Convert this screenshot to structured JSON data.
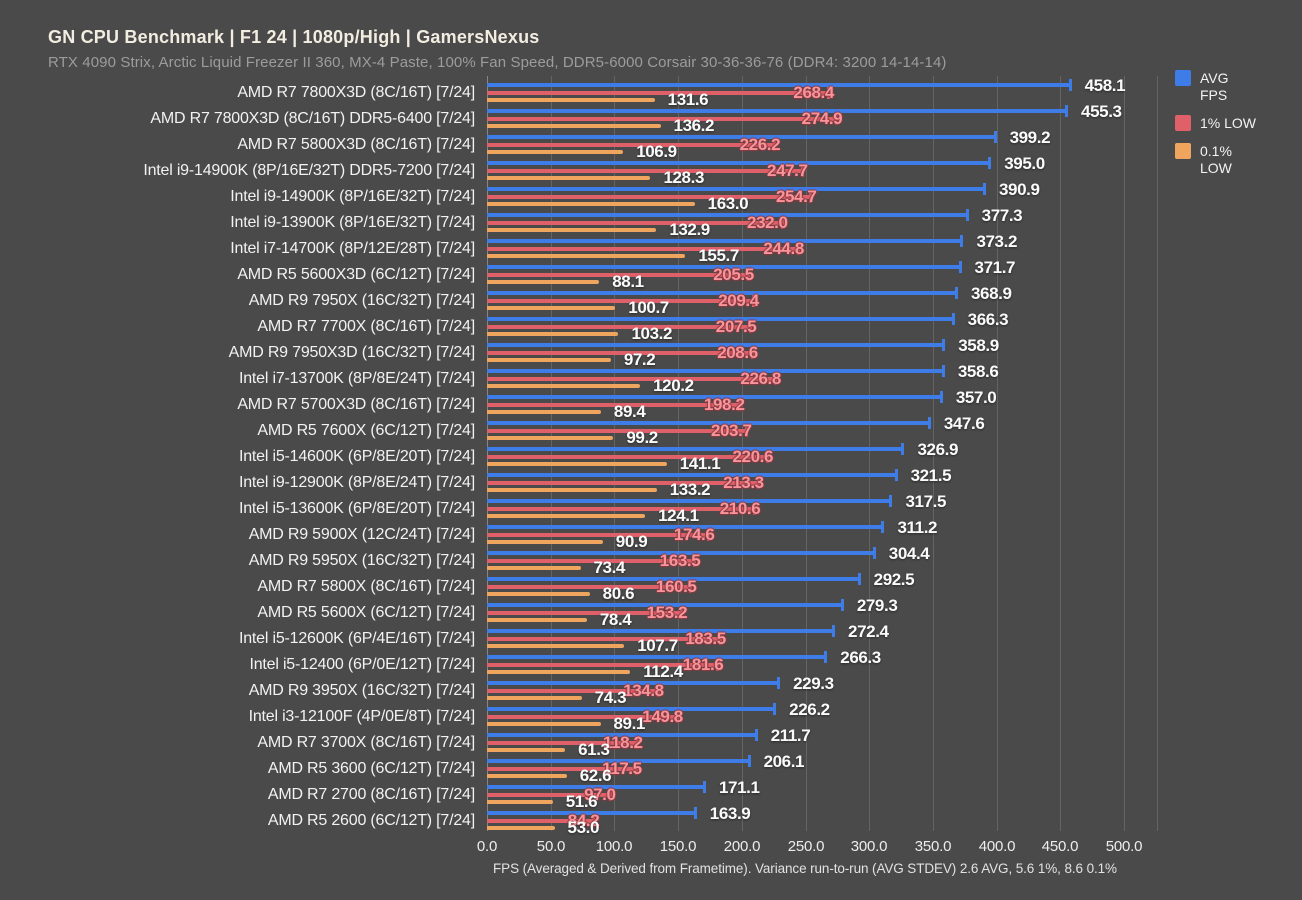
{
  "header": {
    "title": "GN CPU Benchmark | F1 24 | 1080p/High | GamersNexus",
    "subtitle": "RTX 4090 Strix, Arctic Liquid Freezer II 360, MX-4 Paste, 100% Fan Speed, DDR5-6000 Corsair 30-36-36-76 (DDR4: 3200 14-14-14)"
  },
  "legend": {
    "items": [
      {
        "label": "AVG FPS",
        "color": "#3e7ce8"
      },
      {
        "label": "1% LOW",
        "color": "#e0606a"
      },
      {
        "label": "0.1% LOW",
        "color": "#f0a55f"
      }
    ]
  },
  "chart_data": {
    "type": "bar",
    "orientation": "horizontal",
    "title": "GN CPU Benchmark | F1 24 | 1080p/High | GamersNexus",
    "xlabel": "FPS (Averaged & Derived from Frametime). Variance run-to-run (AVG STDEV) 2.6 AVG, 5.6 1%, 8.6 0.1%",
    "xlim": [
      0,
      500
    ],
    "xticks": [
      "0.0",
      "50.0",
      "100.0",
      "150.0",
      "200.0",
      "250.0",
      "300.0",
      "350.0",
      "400.0",
      "450.0",
      "500.0"
    ],
    "grid": true,
    "legend_position": "top-right",
    "categories": [
      "AMD R7 7800X3D (8C/16T) [7/24]",
      "AMD R7 7800X3D (8C/16T) DDR5-6400 [7/24]",
      "AMD R7 5800X3D (8C/16T) [7/24]",
      "Intel i9-14900K (8P/16E/32T) DDR5-7200 [7/24]",
      "Intel i9-14900K (8P/16E/32T) [7/24]",
      "Intel i9-13900K (8P/16E/32T) [7/24]",
      "Intel i7-14700K (8P/12E/28T) [7/24]",
      "AMD R5 5600X3D (6C/12T) [7/24]",
      "AMD R9 7950X (16C/32T) [7/24]",
      "AMD R7 7700X (8C/16T) [7/24]",
      "AMD R9 7950X3D (16C/32T) [7/24]",
      "Intel i7-13700K (8P/8E/24T) [7/24]",
      "AMD R7 5700X3D (8C/16T) [7/24]",
      "AMD R5 7600X (6C/12T) [7/24]",
      "Intel i5-14600K (6P/8E/20T) [7/24]",
      "Intel i9-12900K (8P/8E/24T) [7/24]",
      "Intel i5-13600K (6P/8E/20T) [7/24]",
      "AMD R9 5900X (12C/24T) [7/24]",
      "AMD R9 5950X (16C/32T) [7/24]",
      "AMD R7 5800X (8C/16T) [7/24]",
      "AMD R5 5600X (6C/12T) [7/24]",
      "Intel i5-12600K (6P/4E/16T) [7/24]",
      "Intel i5-12400 (6P/0E/12T) [7/24]",
      "AMD R9 3950X (16C/32T) [7/24]",
      "Intel i3-12100F (4P/0E/8T) [7/24]",
      "AMD R7 3700X (8C/16T) [7/24]",
      "AMD R5 3600 (6C/12T) [7/24]",
      "AMD R7 2700 (8C/16T) [7/24]",
      "AMD R5 2600 (6C/12T) [7/24]"
    ],
    "series": [
      {
        "name": "AVG FPS",
        "color": "#3e7ce8",
        "values": [
          458.1,
          455.3,
          399.2,
          395.0,
          390.9,
          377.3,
          373.2,
          371.7,
          368.9,
          366.3,
          358.9,
          358.6,
          357.0,
          347.6,
          326.9,
          321.5,
          317.5,
          311.2,
          304.4,
          292.5,
          279.3,
          272.4,
          266.3,
          229.3,
          226.2,
          211.7,
          206.1,
          171.1,
          163.9
        ]
      },
      {
        "name": "1% LOW",
        "color": "#e0606a",
        "values": [
          268.4,
          274.9,
          226.2,
          247.7,
          254.7,
          232.0,
          244.8,
          205.5,
          209.4,
          207.5,
          208.6,
          226.8,
          198.2,
          203.7,
          220.6,
          213.3,
          210.6,
          174.6,
          163.5,
          160.5,
          153.2,
          183.5,
          181.6,
          134.8,
          149.8,
          118.2,
          117.5,
          97.0,
          84.2
        ]
      },
      {
        "name": "0.1% LOW",
        "color": "#f0a55f",
        "values": [
          131.6,
          136.2,
          106.9,
          128.3,
          163.0,
          132.9,
          155.7,
          88.1,
          100.7,
          103.2,
          97.2,
          120.2,
          89.4,
          99.2,
          141.1,
          133.2,
          124.1,
          90.9,
          73.4,
          80.6,
          78.4,
          107.7,
          112.4,
          74.3,
          89.1,
          61.3,
          62.6,
          51.6,
          53.0
        ]
      }
    ]
  },
  "colors": {
    "background": "#4a4a4a",
    "grid": "#646464",
    "title": "#f2ede1",
    "subtitle": "#9c9c9c",
    "value_label_white": "#fbfbfb",
    "value_label_red": "#f7959b"
  }
}
